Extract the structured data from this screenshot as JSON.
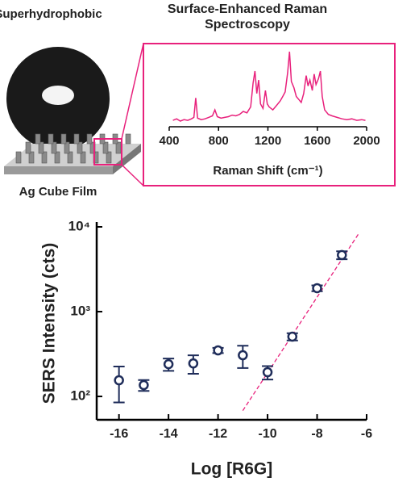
{
  "labels": {
    "left_title": "Superhydrophobic",
    "film_label": "Ag Cube Film"
  },
  "chart_data": [
    {
      "type": "line",
      "title": "Surface-Enhanced Raman Spectroscopy",
      "xlabel": "Raman Shift (cm⁻¹)",
      "color": "#e8217c",
      "xlim": [
        400,
        2000
      ],
      "xticks": [
        400,
        800,
        1200,
        1600,
        2000
      ],
      "x": [
        430,
        460,
        490,
        520,
        550,
        580,
        600,
        615,
        630,
        660,
        690,
        720,
        750,
        770,
        790,
        820,
        850,
        880,
        910,
        940,
        970,
        1000,
        1030,
        1060,
        1080,
        1095,
        1110,
        1125,
        1140,
        1160,
        1180,
        1195,
        1210,
        1240,
        1270,
        1300,
        1320,
        1340,
        1360,
        1375,
        1390,
        1410,
        1430,
        1450,
        1470,
        1490,
        1510,
        1525,
        1540,
        1560,
        1575,
        1590,
        1610,
        1625,
        1640,
        1660,
        1690,
        1720,
        1760,
        1800,
        1840,
        1880,
        1920,
        1960,
        1990
      ],
      "values": [
        8,
        10,
        7,
        9,
        8,
        10,
        12,
        38,
        11,
        9,
        10,
        12,
        14,
        22,
        13,
        11,
        12,
        13,
        15,
        14,
        16,
        20,
        18,
        26,
        58,
        74,
        44,
        62,
        30,
        24,
        48,
        30,
        26,
        22,
        28,
        34,
        40,
        46,
        72,
        100,
        60,
        52,
        40,
        36,
        32,
        44,
        68,
        54,
        62,
        48,
        70,
        56,
        64,
        74,
        40,
        22,
        16,
        14,
        12,
        10,
        9,
        10,
        8,
        9,
        8
      ]
    },
    {
      "type": "scatter",
      "xlabel": "Log [R6G]",
      "ylabel": "SERS Intensity (cts)",
      "color": "#1f2d5a",
      "log_y": true,
      "xlim": [
        -16.9,
        -6
      ],
      "xticks": [
        -16,
        -14,
        -12,
        -10,
        -8,
        -6
      ],
      "ylim": [
        53,
        10000
      ],
      "yticks": [
        {
          "value": 100,
          "label": "10²"
        },
        {
          "value": 1000,
          "label": "10³"
        },
        {
          "value": 10000,
          "label": "10⁴"
        }
      ],
      "x": [
        -16,
        -15,
        -14,
        -13,
        -12,
        -11,
        -10,
        -9,
        -8,
        -7
      ],
      "values": [
        155,
        136,
        240,
        245,
        349,
        306,
        193,
        507,
        1890,
        4650
      ],
      "errors": [
        70,
        20,
        40,
        60,
        25,
        90,
        35,
        50,
        150,
        500
      ],
      "fit": {
        "x": [
          -11,
          -6.3
        ],
        "values": [
          68,
          8500
        ],
        "color": "#e8217c"
      }
    }
  ]
}
